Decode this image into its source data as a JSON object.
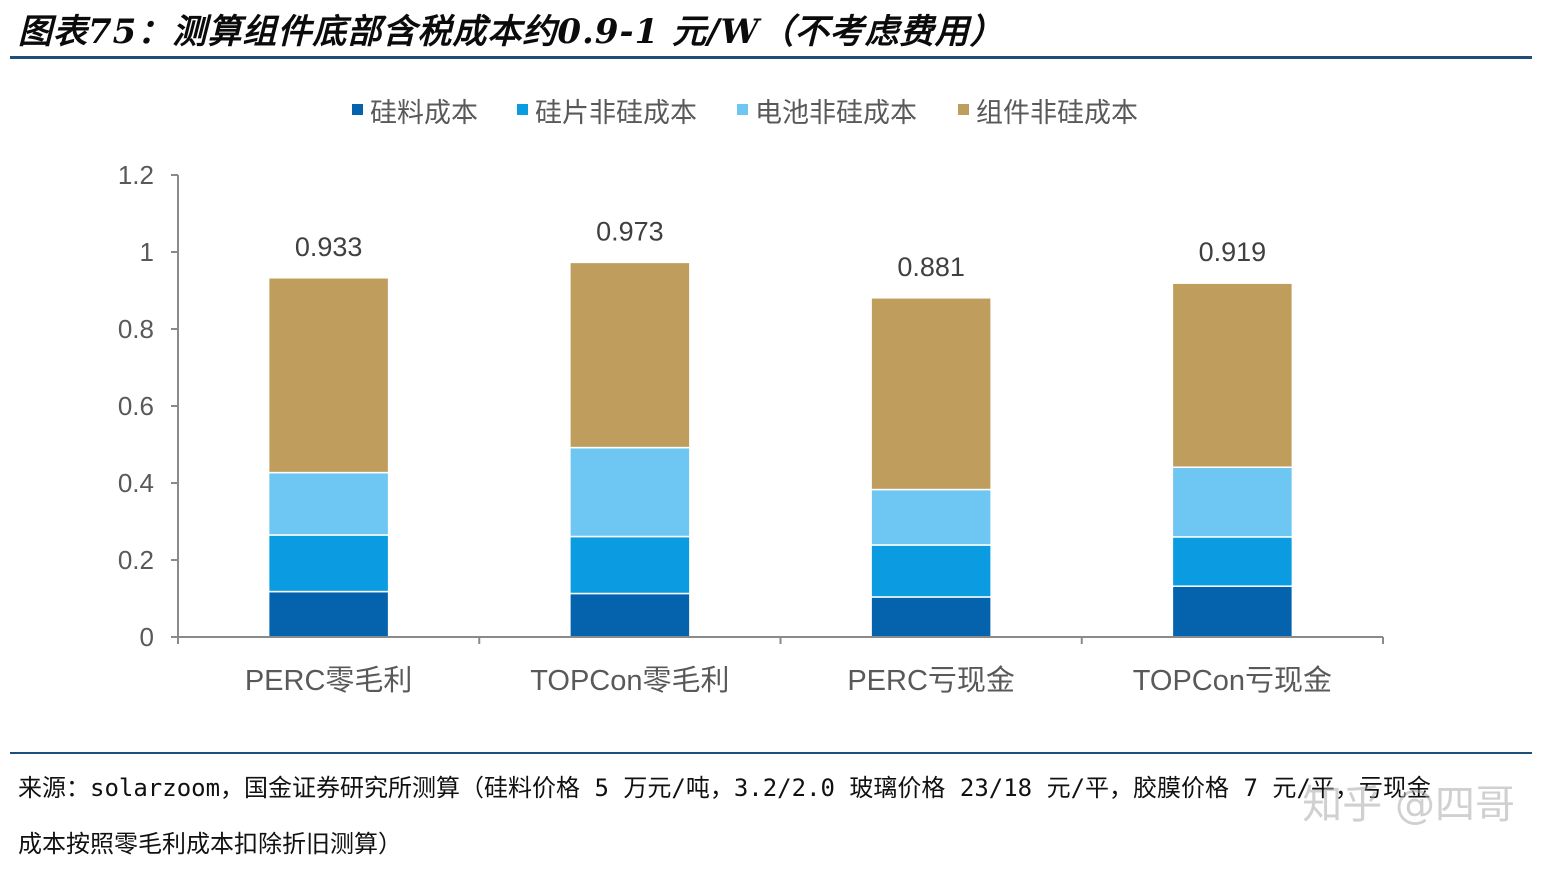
{
  "title": "图表75：测算组件底部含税成本约0.9-1 元/W（不考虑费用）",
  "source": {
    "line1": "来源：solarzoom，国金证券研究所测算（硅料价格 5 万元/吨，3.2/2.0 玻璃价格 23/18 元/平，胶膜价格 7 元/平，亏现金",
    "line2": "成本按照零毛利成本扣除折旧测算）"
  },
  "watermark": "知乎 @四哥",
  "chart_data": {
    "type": "bar",
    "stacked": true,
    "categories": [
      "PERC零毛利",
      "TOPCon零毛利",
      "PERC亏现金",
      "TOPCon亏现金"
    ],
    "series": [
      {
        "name": "硅料成本",
        "color": "#0563ad",
        "values": [
          0.118,
          0.113,
          0.104,
          0.132
        ]
      },
      {
        "name": "硅片非硅成本",
        "color": "#0a9be0",
        "values": [
          0.147,
          0.148,
          0.135,
          0.128
        ]
      },
      {
        "name": "电池非硅成本",
        "color": "#6ec6f2",
        "values": [
          0.162,
          0.231,
          0.144,
          0.181
        ]
      },
      {
        "name": "组件非硅成本",
        "color": "#bf9d5c",
        "values": [
          0.506,
          0.481,
          0.498,
          0.478
        ]
      }
    ],
    "totals": [
      "0.933",
      "0.973",
      "0.881",
      "0.919"
    ],
    "yticks": [
      "0",
      "0.2",
      "0.4",
      "0.6",
      "0.8",
      "1",
      "1.2"
    ],
    "ylim": [
      0,
      1.2
    ],
    "legend_position": "top",
    "grid": false
  }
}
